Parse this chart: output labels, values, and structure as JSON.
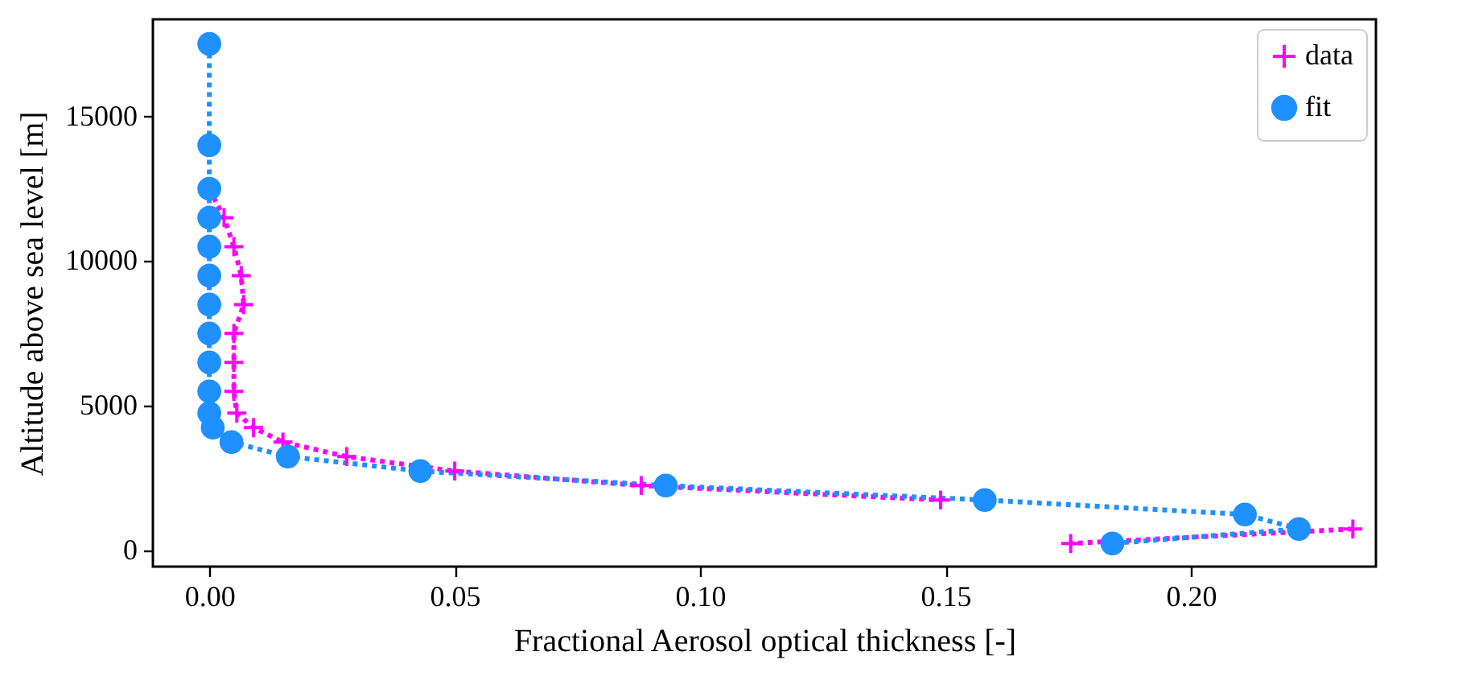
{
  "chart_data": {
    "type": "line",
    "xlabel": "Fractional Aerosol optical thickness [-]",
    "ylabel": "Altitude above sea level [m]",
    "xlim": [
      -0.0115,
      0.2377
    ],
    "xticks": [
      {
        "value": 0,
        "label": "0.00"
      },
      {
        "value": 0.05,
        "label": "0.05"
      },
      {
        "value": 0.1,
        "label": "0.10"
      },
      {
        "value": 0.15,
        "label": "0.15"
      },
      {
        "value": 0.2,
        "label": "0.20"
      }
    ],
    "ylim": [
      -550,
      18350
    ],
    "yticks": [
      0,
      5000,
      10000,
      15000
    ],
    "grid": false,
    "legend": "top right",
    "line_style": "dotted",
    "series": [
      {
        "name": "data",
        "color": "#ff00ff",
        "marker": "cross",
        "x": [
          null,
          null,
          0,
          0.003,
          0.005,
          0.0065,
          0.007,
          0.005,
          0.005,
          0.005,
          0.0056,
          0.009,
          0.015,
          0.028,
          0.05,
          0.088,
          0.149,
          null,
          0.233,
          0.1755
        ],
        "values": [
          null,
          null,
          12500,
          11500,
          10500,
          9500,
          8500,
          7500,
          6500,
          5500,
          4750,
          4250,
          3750,
          3250,
          2750,
          2250,
          1750,
          null,
          750,
          250
        ]
      },
      {
        "name": "fit",
        "color": "#1e90ff",
        "marker": "circle",
        "x": [
          0,
          0,
          0,
          0,
          0,
          0,
          0,
          0,
          0,
          0,
          0,
          0.0007,
          0.0045,
          0.016,
          0.043,
          0.093,
          0.158,
          0.211,
          0.222,
          0.184
        ],
        "values": [
          17500,
          14000,
          12500,
          11500,
          10500,
          9500,
          8500,
          7500,
          6500,
          5500,
          4750,
          4250,
          3750,
          3250,
          2750,
          2250,
          1750,
          1250,
          750,
          250
        ]
      }
    ]
  }
}
